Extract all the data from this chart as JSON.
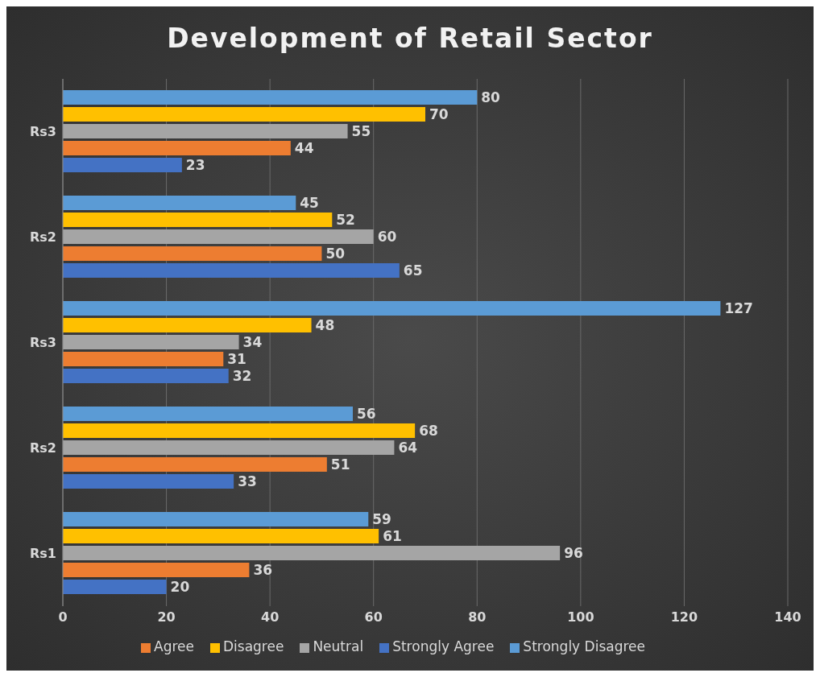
{
  "chart_data": {
    "type": "bar",
    "orientation": "horizontal",
    "title": "Development of Retail Sector",
    "categories": [
      "Rs3",
      "Rs2",
      "Rs3",
      "Rs2",
      "Rs1"
    ],
    "series": [
      {
        "name": "Strongly Disagree",
        "color": "#5b9bd5",
        "values": [
          80,
          45,
          127,
          56,
          59
        ]
      },
      {
        "name": "Disagree",
        "color": "#ffc000",
        "values": [
          70,
          52,
          48,
          68,
          61
        ]
      },
      {
        "name": "Neutral",
        "color": "#a5a5a5",
        "values": [
          55,
          60,
          34,
          64,
          96
        ]
      },
      {
        "name": "Agree",
        "color": "#ed7d31",
        "values": [
          44,
          50,
          31,
          51,
          36
        ]
      },
      {
        "name": "Strongly Agree",
        "color": "#4472c4",
        "values": [
          23,
          65,
          32,
          33,
          20
        ]
      }
    ],
    "xlim": [
      0,
      140
    ],
    "xticks": [
      0,
      20,
      40,
      60,
      80,
      100,
      120,
      140
    ],
    "grid": "x",
    "legend": "bottom",
    "data_labels": true
  }
}
